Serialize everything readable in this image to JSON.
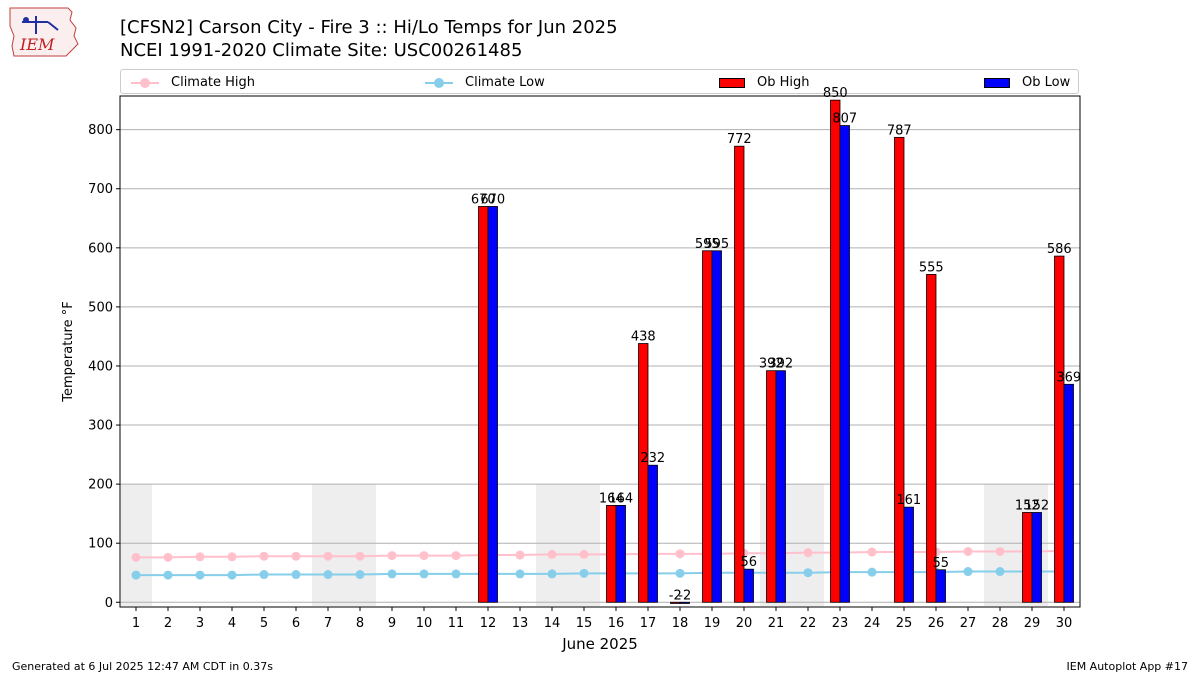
{
  "header": {
    "title_line1": "[CFSN2] Carson City - Fire 3 :: Hi/Lo Temps for Jun 2025",
    "title_line2": "NCEI 1991-2020 Climate Site: USC00261485",
    "logo_text": "IEM"
  },
  "legend": {
    "items": [
      {
        "label": "Climate High",
        "color": "#ffc0cb",
        "kind": "line"
      },
      {
        "label": "Climate Low",
        "color": "#87ceeb",
        "kind": "line"
      },
      {
        "label": "Ob High",
        "color": "#ff0000",
        "kind": "bar"
      },
      {
        "label": "Ob Low",
        "color": "#0000ff",
        "kind": "bar"
      }
    ]
  },
  "footer": {
    "left": "Generated at 6 Jul 2025 12:47 AM CDT in 0.37s",
    "right": "IEM Autoplot App #17"
  },
  "chart_data": {
    "type": "bar",
    "title": "[CFSN2] Carson City - Fire 3 :: Hi/Lo Temps for Jun 2025",
    "xlabel": "June 2025",
    "ylabel": "Temperature °F",
    "xlim": [
      0.5,
      30.5
    ],
    "ylim": [
      -8,
      857
    ],
    "y_ticks": [
      0,
      100,
      200,
      300,
      400,
      500,
      600,
      700,
      800
    ],
    "x_ticks": [
      1,
      2,
      3,
      4,
      5,
      6,
      7,
      8,
      9,
      10,
      11,
      12,
      13,
      14,
      15,
      16,
      17,
      18,
      19,
      20,
      21,
      22,
      23,
      24,
      25,
      26,
      27,
      28,
      29,
      30
    ],
    "grid": "horizontal",
    "legend_position": "top",
    "weekend_shading": {
      "color": "#eeeeee",
      "top_value": 200,
      "days": [
        1,
        7,
        8,
        14,
        15,
        21,
        22,
        28,
        29
      ]
    },
    "series": [
      {
        "name": "Ob High",
        "kind": "bar",
        "color": "#ff0000",
        "label_color": "#000000",
        "points": [
          {
            "day": 12,
            "value": 670,
            "label": "670"
          },
          {
            "day": 16,
            "value": 164,
            "label": "164"
          },
          {
            "day": 17,
            "value": 438,
            "label": "438"
          },
          {
            "day": 18,
            "value": -2,
            "label": "-2"
          },
          {
            "day": 19,
            "value": 595,
            "label": "595"
          },
          {
            "day": 20,
            "value": 772,
            "label": "772"
          },
          {
            "day": 21,
            "value": 392,
            "label": "392"
          },
          {
            "day": 23,
            "value": 850,
            "label": "850"
          },
          {
            "day": 25,
            "value": 787,
            "label": "787"
          },
          {
            "day": 26,
            "value": 555,
            "label": "555"
          },
          {
            "day": 29,
            "value": 152,
            "label": "152"
          },
          {
            "day": 30,
            "value": 586,
            "label": "586"
          }
        ]
      },
      {
        "name": "Ob Low",
        "kind": "bar",
        "color": "#0000ff",
        "label_color": "#000000",
        "points": [
          {
            "day": 12,
            "value": 670,
            "label": "670"
          },
          {
            "day": 16,
            "value": 164,
            "label": "164"
          },
          {
            "day": 17,
            "value": 232,
            "label": "232"
          },
          {
            "day": 18,
            "value": -2,
            "label": "-2"
          },
          {
            "day": 19,
            "value": 595,
            "label": "595"
          },
          {
            "day": 20,
            "value": 56,
            "label": "56"
          },
          {
            "day": 21,
            "value": 392,
            "label": "392"
          },
          {
            "day": 23,
            "value": 807,
            "label": "807"
          },
          {
            "day": 25,
            "value": 161,
            "label": "161"
          },
          {
            "day": 26,
            "value": 55,
            "label": "55"
          },
          {
            "day": 29,
            "value": 152,
            "label": "152"
          },
          {
            "day": 30,
            "value": 369,
            "label": "369"
          }
        ]
      },
      {
        "name": "Climate High",
        "kind": "line",
        "color": "#ffc0cb",
        "values": [
          76,
          76,
          77,
          77,
          78,
          78,
          78,
          78,
          79,
          79,
          79,
          80,
          80,
          81,
          81,
          81,
          82,
          82,
          82,
          83,
          83,
          84,
          84,
          85,
          85,
          85,
          86,
          86,
          86,
          87
        ]
      },
      {
        "name": "Climate Low",
        "kind": "line",
        "color": "#87ceeb",
        "values": [
          46,
          46,
          46,
          46,
          47,
          47,
          47,
          47,
          48,
          48,
          48,
          48,
          48,
          48,
          49,
          49,
          49,
          49,
          50,
          50,
          50,
          50,
          51,
          51,
          51,
          51,
          52,
          52,
          52,
          52
        ]
      }
    ]
  }
}
